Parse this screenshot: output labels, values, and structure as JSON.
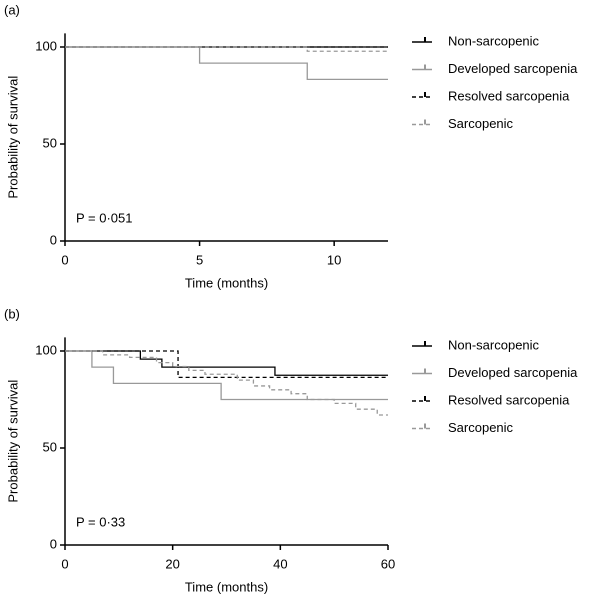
{
  "chart_data": [
    {
      "type": "line",
      "step": true,
      "panel_label": "(a)",
      "annotation": "P = 0·051",
      "x_label": "Time (months)",
      "y_label": "Probability of survival",
      "xlim": [
        0,
        12
      ],
      "xticks": [
        0,
        5,
        10
      ],
      "ylim": [
        0,
        107
      ],
      "yticks": [
        0,
        50,
        100
      ],
      "series": [
        {
          "name": "Non-sarcopenic",
          "color": "#000000",
          "dashed": false,
          "x": [
            0,
            12
          ],
          "values": [
            100,
            100
          ]
        },
        {
          "name": "Developed sarcopenia",
          "color": "#999999",
          "dashed": false,
          "x": [
            0,
            5,
            9,
            12
          ],
          "values": [
            100,
            91.7,
            83.3,
            83.3
          ]
        },
        {
          "name": "Resolved sarcopenia",
          "color": "#000000",
          "dashed": true,
          "x": [
            0,
            12
          ],
          "values": [
            100,
            100
          ]
        },
        {
          "name": "Sarcopenic",
          "color": "#999999",
          "dashed": true,
          "x": [
            0,
            9,
            12
          ],
          "values": [
            100,
            97.8,
            97.8
          ]
        }
      ]
    },
    {
      "type": "line",
      "step": true,
      "panel_label": "(b)",
      "annotation": "P = 0·33",
      "x_label": "Time (months)",
      "y_label": "Probability of survival",
      "xlim": [
        0,
        60
      ],
      "xticks": [
        0,
        20,
        40,
        60
      ],
      "ylim": [
        0,
        107
      ],
      "yticks": [
        0,
        50,
        100
      ],
      "series": [
        {
          "name": "Non-sarcopenic",
          "color": "#000000",
          "dashed": false,
          "x": [
            0,
            14,
            18,
            39,
            60
          ],
          "values": [
            100,
            95.8,
            91.7,
            87.5,
            87.5
          ]
        },
        {
          "name": "Developed sarcopenia",
          "color": "#999999",
          "dashed": false,
          "x": [
            0,
            5,
            9,
            29,
            60
          ],
          "values": [
            100,
            91.7,
            83.3,
            75,
            75
          ]
        },
        {
          "name": "Resolved sarcopenia",
          "color": "#000000",
          "dashed": true,
          "x": [
            0,
            21,
            60
          ],
          "values": [
            100,
            86.4,
            86.4
          ]
        },
        {
          "name": "Sarcopenic",
          "color": "#999999",
          "dashed": true,
          "x": [
            0,
            7,
            12,
            17,
            20,
            23,
            26,
            32,
            35,
            38,
            42,
            45,
            50,
            54,
            58,
            60
          ],
          "values": [
            100,
            98,
            96.7,
            94,
            92,
            90,
            88,
            85,
            82,
            80,
            78,
            75,
            73,
            70,
            67,
            67
          ]
        }
      ]
    }
  ]
}
